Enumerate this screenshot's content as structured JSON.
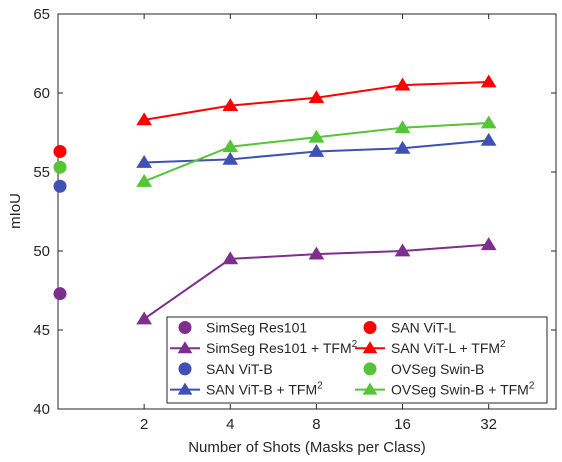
{
  "chart_data": {
    "type": "line",
    "title": "",
    "xlabel": "Number of Shots (Masks per Class)",
    "ylabel": "mIoU",
    "x_scale": "log2",
    "x_ticks": [
      2,
      4,
      8,
      16,
      32
    ],
    "x_tick_labels": [
      "2",
      "4",
      "8",
      "16",
      "32"
    ],
    "xlim": [
      1,
      55
    ],
    "ylim": [
      40,
      65
    ],
    "y_ticks": [
      40,
      45,
      50,
      55,
      60,
      65
    ],
    "y_tick_labels": [
      "40",
      "45",
      "50",
      "55",
      "60",
      "65"
    ],
    "grid": false,
    "legend_position": "bottom-right",
    "baselines": [
      {
        "name": "SimSeg Res101",
        "y": 47.3,
        "color": "#7E2F8E",
        "marker": "circle"
      },
      {
        "name": "SAN ViT-L",
        "y": 56.3,
        "color": "#FF0000",
        "marker": "circle"
      },
      {
        "name": "SAN ViT-B",
        "y": 54.1,
        "color": "#3F51B5",
        "marker": "circle"
      },
      {
        "name": "OVSeg Swin-B",
        "y": 55.3,
        "color": "#55C436",
        "marker": "circle"
      }
    ],
    "series": [
      {
        "name": "SimSeg Res101 + TFM",
        "name_sup": "2",
        "color": "#7E2F8E",
        "marker": "triangle",
        "x": [
          2,
          4,
          8,
          16,
          32
        ],
        "values": [
          45.7,
          49.5,
          49.8,
          50.0,
          50.4
        ]
      },
      {
        "name": "SAN ViT-L + TFM",
        "name_sup": "2",
        "color": "#FF0000",
        "marker": "triangle",
        "x": [
          2,
          4,
          8,
          16,
          32
        ],
        "values": [
          58.3,
          59.2,
          59.7,
          60.5,
          60.7
        ]
      },
      {
        "name": "SAN ViT-B + TFM",
        "name_sup": "2",
        "color": "#3F51B5",
        "marker": "triangle",
        "x": [
          2,
          4,
          8,
          16,
          32
        ],
        "values": [
          55.6,
          55.8,
          56.3,
          56.5,
          57.0
        ]
      },
      {
        "name": "OVSeg Swin-B + TFM",
        "name_sup": "2",
        "color": "#55C436",
        "marker": "triangle",
        "x": [
          2,
          4,
          8,
          16,
          32
        ],
        "values": [
          54.4,
          56.6,
          57.2,
          57.8,
          58.1
        ]
      }
    ],
    "legend_order": [
      {
        "kind": "baseline",
        "index": 0
      },
      {
        "kind": "baseline",
        "index": 1
      },
      {
        "kind": "series",
        "index": 0
      },
      {
        "kind": "series",
        "index": 1
      },
      {
        "kind": "baseline",
        "index": 2
      },
      {
        "kind": "baseline",
        "index": 3
      },
      {
        "kind": "series",
        "index": 2
      },
      {
        "kind": "series",
        "index": 3
      }
    ]
  }
}
